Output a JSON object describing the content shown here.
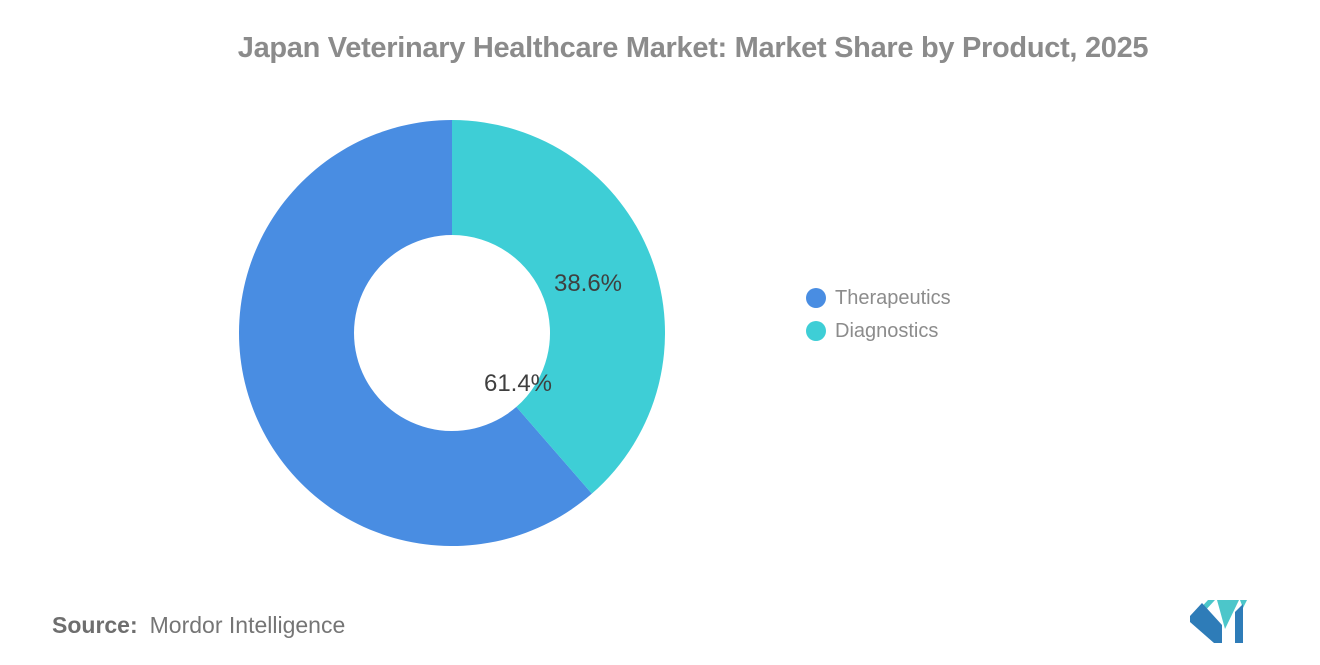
{
  "title": "Japan Veterinary Healthcare Market: Market Share by Product, 2025",
  "chart_data": {
    "type": "pie",
    "subtype": "donut",
    "title": "Japan Veterinary Healthcare Market: Market Share by Product, 2025",
    "labels": [
      "Therapeutics",
      "Diagnostics"
    ],
    "values": [
      61.4,
      38.6
    ],
    "display_labels": [
      "61.4%",
      "38.6%"
    ],
    "colors": [
      "#498de2",
      "#3eced6"
    ],
    "start_angle_deg": 0,
    "direction": "counterclockwise",
    "inner_radius_ratio": 0.46,
    "legend_position": "right",
    "grid": false
  },
  "legend": {
    "items": [
      {
        "label": "Therapeutics",
        "color": "#498de2"
      },
      {
        "label": "Diagnostics",
        "color": "#3eced6"
      }
    ]
  },
  "source": {
    "prefix": "Source:",
    "text": "Mordor Intelligence"
  },
  "logo": {
    "name": "mordor-intelligence-logo",
    "blue": "#2e7cb8",
    "teal": "#4cc6ca"
  }
}
